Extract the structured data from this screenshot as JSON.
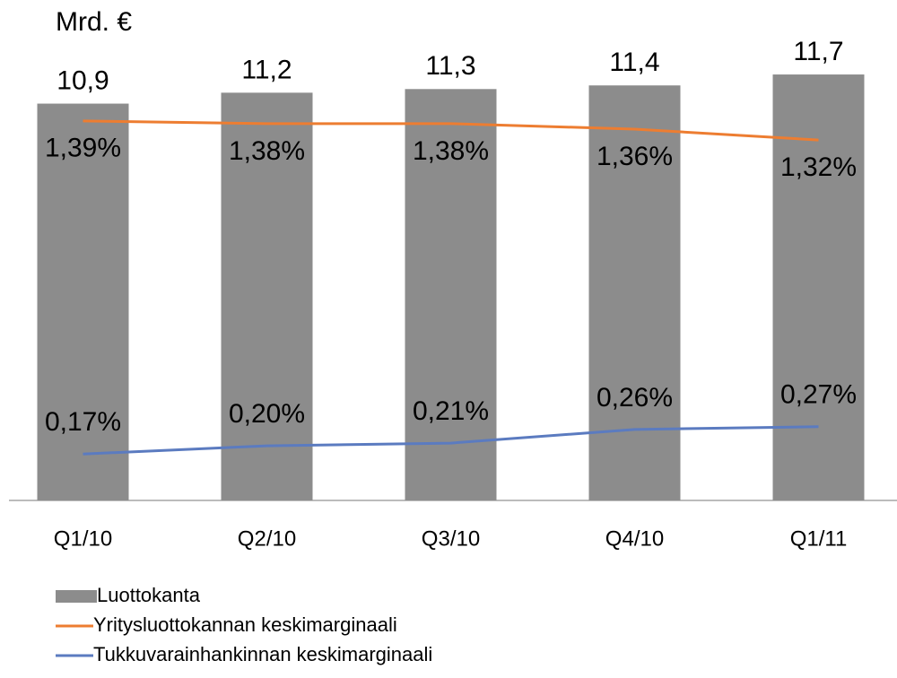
{
  "chart_data": {
    "type": "bar-line",
    "unit_label": "Mrd. €",
    "categories": [
      "Q1/10",
      "Q2/10",
      "Q3/10",
      "Q4/10",
      "Q1/11"
    ],
    "ylim": [
      0,
      13.5
    ],
    "y2lim": [
      0,
      1.8
    ],
    "series": [
      {
        "name": "Luottokanta",
        "type": "bar",
        "color": "#8c8c8c",
        "values": [
          10.9,
          11.2,
          11.3,
          11.4,
          11.7
        ],
        "value_labels": [
          "10,9",
          "11,2",
          "11,3",
          "11,4",
          "11,7"
        ]
      },
      {
        "name": "Yritysluottokannan keskimarginaali",
        "type": "line",
        "axis": "y2",
        "color": "#ed7d31",
        "values": [
          1.39,
          1.38,
          1.38,
          1.36,
          1.32
        ],
        "value_labels": [
          "1,39%",
          "1,38%",
          "1,38%",
          "1,36%",
          "1,32%"
        ]
      },
      {
        "name": "Tukkuvarainhankinnan keskimarginaali",
        "type": "line",
        "axis": "y2",
        "color": "#5b7bc0",
        "values": [
          0.17,
          0.2,
          0.21,
          0.26,
          0.27
        ],
        "value_labels": [
          "0,17%",
          "0,20%",
          "0,21%",
          "0,26%",
          "0,27%"
        ]
      }
    ],
    "legend": "bottom-left"
  }
}
